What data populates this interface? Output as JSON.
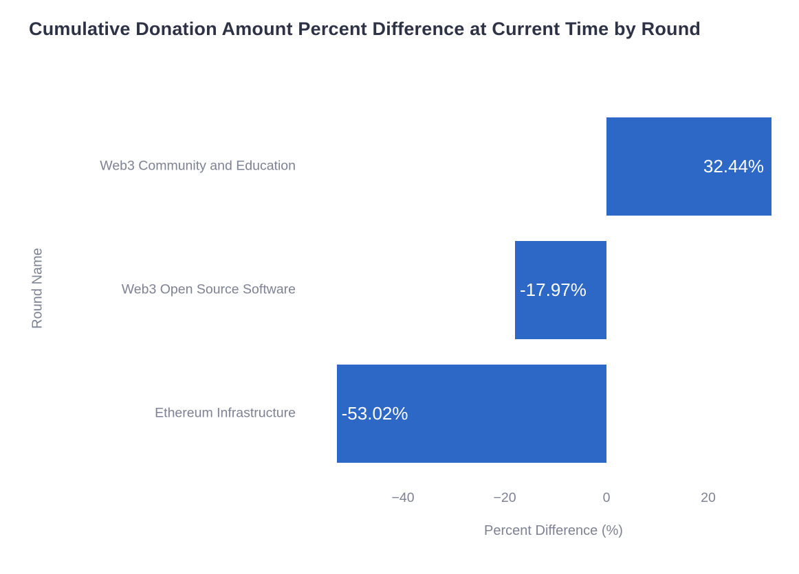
{
  "chart": {
    "title": "Cumulative Donation Amount Percent Difference at Current Time by Round",
    "xlabel": "Percent Difference (%)",
    "ylabel": "Round Name",
    "colors": {
      "bar_fill": "#2d68c6",
      "title_text": "#2e3245",
      "axis_text": "#7d8294",
      "bar_value_text": "#ffffff",
      "background": "#ffffff"
    }
  },
  "chart_data": {
    "type": "bar",
    "orientation": "horizontal",
    "title": "Cumulative Donation Amount Percent Difference at Current Time by Round",
    "xlabel": "Percent Difference (%)",
    "ylabel": "Round Name",
    "categories": [
      "Web3 Community and Education",
      "Web3 Open Source Software",
      "Ethereum Infrastructure"
    ],
    "values": [
      32.44,
      -17.97,
      -53.02
    ],
    "bar_labels": [
      "32.44%",
      "-17.97%",
      "-53.02%"
    ],
    "xticks": [
      -40,
      -20,
      0,
      20
    ],
    "xtick_labels": [
      "−40",
      "−20",
      "0",
      "20"
    ],
    "xlim": [
      -58,
      34
    ],
    "grid": false,
    "legend": false
  }
}
